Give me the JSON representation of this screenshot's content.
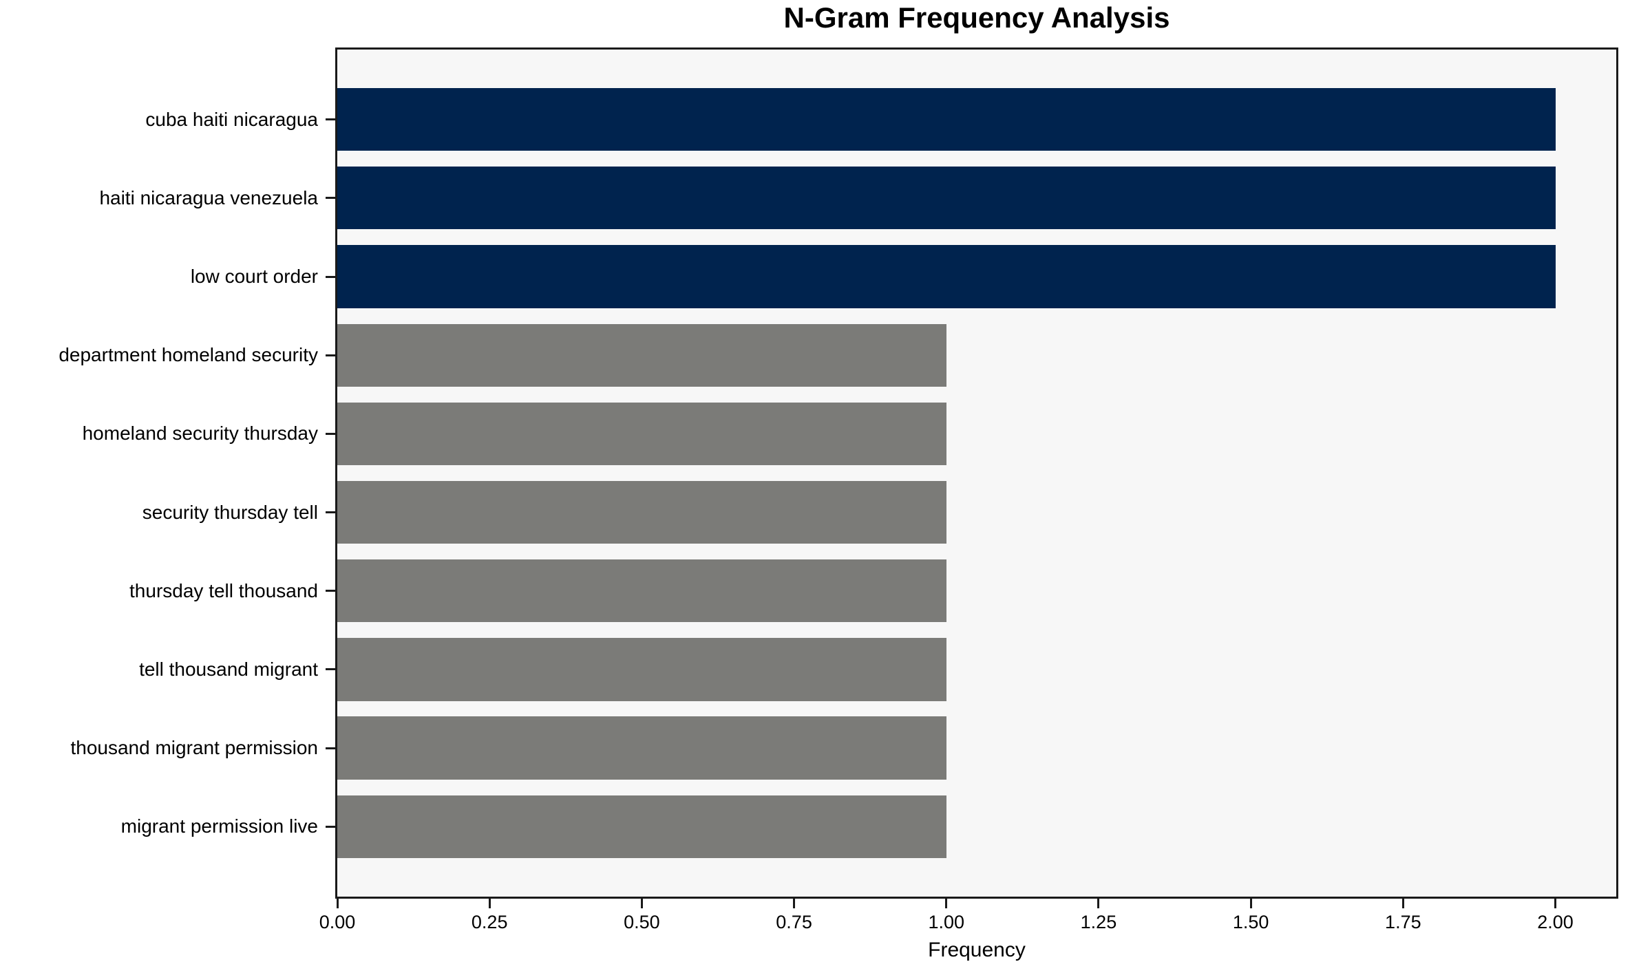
{
  "chart_data": {
    "type": "bar",
    "orientation": "horizontal",
    "title": "N-Gram Frequency Analysis",
    "xlabel": "Frequency",
    "ylabel": "",
    "categories": [
      "cuba haiti nicaragua",
      "haiti nicaragua venezuela",
      "low court order",
      "department homeland security",
      "homeland security thursday",
      "security thursday tell",
      "thursday tell thousand",
      "tell thousand migrant",
      "thousand migrant permission",
      "migrant permission live"
    ],
    "values": [
      2,
      2,
      2,
      1,
      1,
      1,
      1,
      1,
      1,
      1
    ],
    "bar_colors": [
      "#00234e",
      "#00234e",
      "#00234e",
      "#7b7b78",
      "#7b7b78",
      "#7b7b78",
      "#7b7b78",
      "#7b7b78",
      "#7b7b78",
      "#7b7b78"
    ],
    "x_tick_labels": [
      "0.00",
      "0.25",
      "0.50",
      "0.75",
      "1.00",
      "1.25",
      "1.50",
      "1.75",
      "2.00"
    ],
    "x_tick_values": [
      0,
      0.25,
      0.5,
      0.75,
      1.0,
      1.25,
      1.5,
      1.75,
      2.0
    ],
    "xlim": [
      0,
      2.1
    ],
    "grid": false,
    "legend": "none",
    "colors": {
      "highlight_bar": "#00234e",
      "default_bar": "#7b7b78",
      "plot_background": "#f7f7f7",
      "figure_background": "#ffffff",
      "spine": "#1a1a1a",
      "text": "#000000"
    }
  }
}
